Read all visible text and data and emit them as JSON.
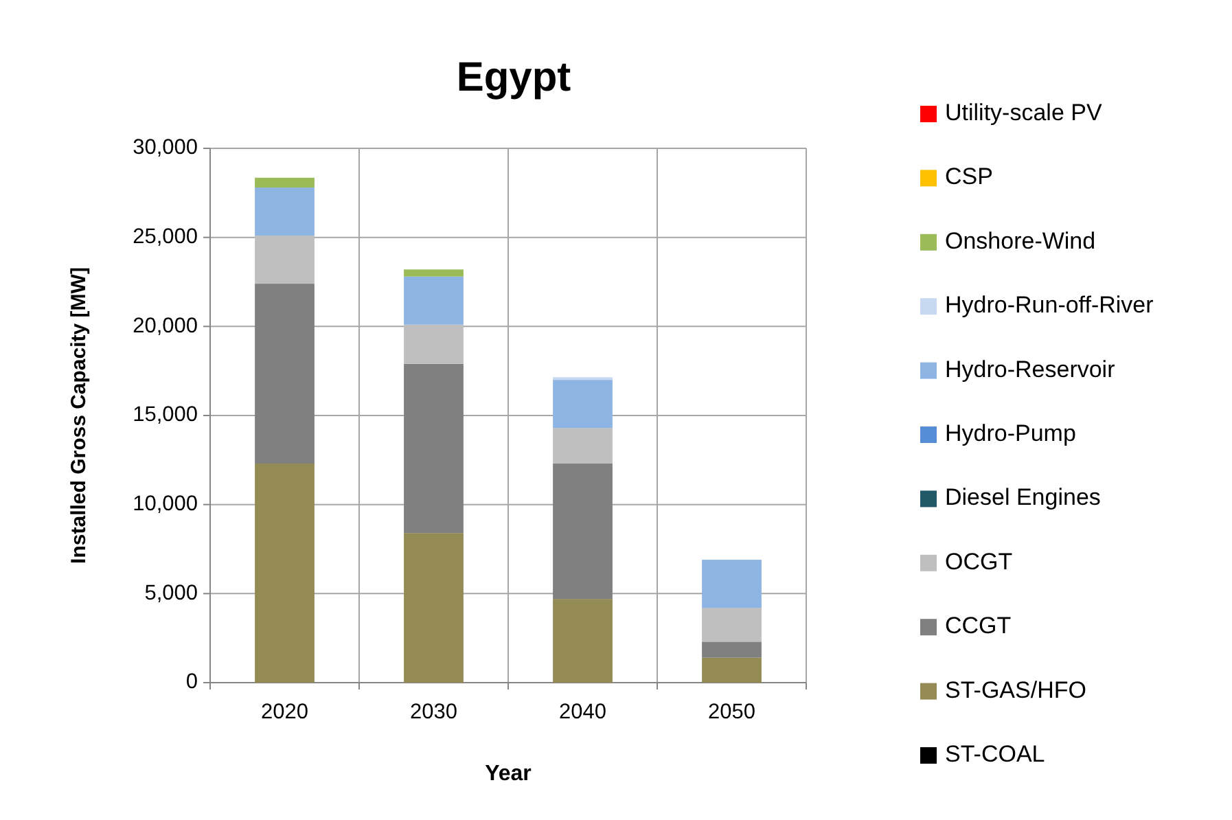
{
  "chart_data": {
    "type": "bar",
    "title": "Egypt",
    "xlabel": "Year",
    "ylabel": "Installed Gross Capacity [MW]",
    "categories": [
      "2020",
      "2030",
      "2040",
      "2050"
    ],
    "stacked": true,
    "ylim": [
      0,
      30000
    ],
    "yticks": [
      {
        "value": 0,
        "label": "0"
      },
      {
        "value": 5000,
        "label": "5,000"
      },
      {
        "value": 10000,
        "label": "10,000"
      },
      {
        "value": 15000,
        "label": "15,000"
      },
      {
        "value": 20000,
        "label": "20,000"
      },
      {
        "value": 25000,
        "label": "25,000"
      },
      {
        "value": 30000,
        "label": "30,000"
      }
    ],
    "grid": true,
    "legend": "right",
    "series": [
      {
        "name": "ST-COAL",
        "color": "#000000",
        "values": [
          0,
          0,
          0,
          0
        ]
      },
      {
        "name": "ST-GAS/HFO",
        "color": "#948a54",
        "values": [
          12300,
          8400,
          4700,
          1400
        ]
      },
      {
        "name": "CCGT",
        "color": "#808080",
        "values": [
          10100,
          9500,
          7600,
          900
        ]
      },
      {
        "name": "OCGT",
        "color": "#bfbfbf",
        "values": [
          2700,
          2200,
          2000,
          1900
        ]
      },
      {
        "name": "Diesel Engines",
        "color": "#215968",
        "values": [
          0,
          0,
          0,
          0
        ]
      },
      {
        "name": "Hydro-Pump",
        "color": "#558ed5",
        "values": [
          0,
          0,
          0,
          0
        ]
      },
      {
        "name": "Hydro-Reservoir",
        "color": "#8eb4e3",
        "values": [
          2700,
          2700,
          2700,
          2700
        ]
      },
      {
        "name": "Hydro-Run-off-River",
        "color": "#c6d9f1",
        "values": [
          null,
          null,
          150,
          null
        ]
      },
      {
        "name": "Onshore-Wind",
        "color": "#9bbb59",
        "values": [
          550,
          400,
          0,
          0
        ]
      },
      {
        "name": "CSP",
        "color": "#ffc000",
        "values": [
          0,
          0,
          0,
          0
        ]
      },
      {
        "name": "Utility-scale PV",
        "color": "#ff0000",
        "values": [
          0,
          0,
          0,
          0
        ]
      }
    ]
  }
}
